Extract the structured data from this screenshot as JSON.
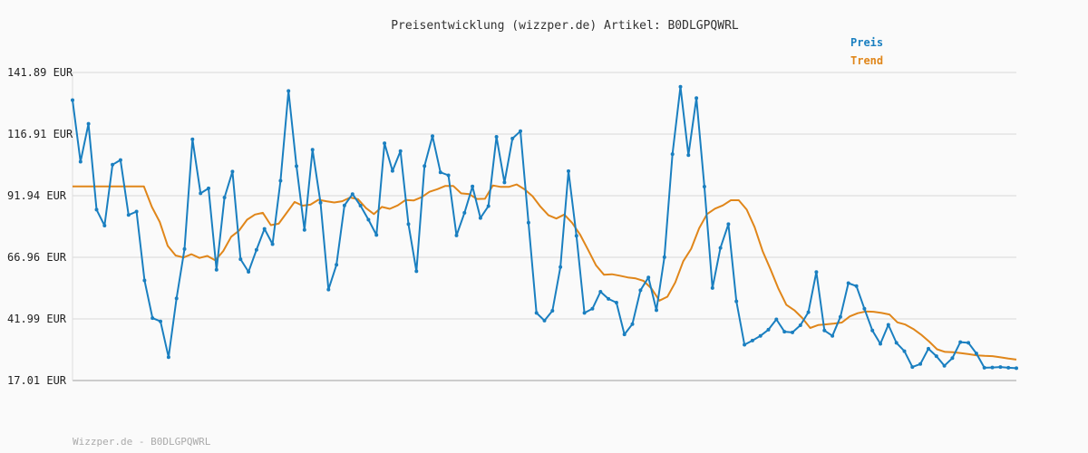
{
  "chart_data": {
    "type": "line",
    "title": "Preisentwicklung (wizzper.de) Artikel: B0DLGPQWRL",
    "xlabel": "",
    "ylabel": "",
    "y_ticks": [
      "141.89 EUR",
      "116.91 EUR",
      "91.94 EUR",
      "66.96 EUR",
      "41.99 EUR",
      "17.01 EUR"
    ],
    "ylim": [
      17.01,
      141.89
    ],
    "grid": "horizontal",
    "legend_position": "top-right",
    "series": [
      {
        "name": "Preis",
        "color": "#1a7fc0",
        "values": [
          130.7,
          105.7,
          121.1,
          86.3,
          79.8,
          104.5,
          106.4,
          84.1,
          85.5,
          57.6,
          42.3,
          41.0,
          26.5,
          50.3,
          70.3,
          114.8,
          92.9,
          94.9,
          61.9,
          91.2,
          101.7,
          66.2,
          61.1,
          70.0,
          78.5,
          72.3,
          98.0,
          134.4,
          103.9,
          78.1,
          110.6,
          89.1,
          53.9,
          63.9,
          88.0,
          92.6,
          87.9,
          82.2,
          76.0,
          113.2,
          102.0,
          110.0,
          80.4,
          61.3,
          104.0,
          116.1,
          101.4,
          100.2,
          75.8,
          85.0,
          95.7,
          82.9,
          87.7,
          115.8,
          97.3,
          115.1,
          118.1,
          81.0,
          44.4,
          41.3,
          45.3,
          63.0,
          101.9,
          75.7,
          44.4,
          46.1,
          53.0,
          50.1,
          48.6,
          35.7,
          39.9,
          53.6,
          58.8,
          45.5,
          67.0,
          108.8,
          136.1,
          108.4,
          131.5,
          95.6,
          54.5,
          70.8,
          80.4,
          49.1,
          31.5,
          33.2,
          35.1,
          37.6,
          41.8,
          36.8,
          36.5,
          39.4,
          44.7,
          61.0,
          37.3,
          35.1,
          42.8,
          56.5,
          55.3,
          46.1,
          37.3,
          31.9,
          39.6,
          32.3,
          28.9,
          22.5,
          23.7,
          29.9,
          26.9,
          23.0,
          26.1,
          32.6,
          32.3,
          28.0,
          22.2,
          22.3,
          22.5,
          22.2,
          22.0
        ]
      },
      {
        "name": "Trend",
        "color": "#e0861a",
        "values": [
          95.7,
          95.7,
          95.7,
          95.7,
          95.7,
          95.7,
          95.7,
          95.7,
          95.7,
          95.7,
          87.4,
          81.3,
          71.6,
          67.7,
          66.9,
          68.2,
          66.7,
          67.5,
          65.7,
          69.5,
          75.3,
          77.8,
          82.2,
          84.3,
          85.0,
          80.0,
          80.6,
          85.0,
          89.4,
          87.9,
          88.3,
          90.3,
          89.7,
          89.2,
          89.7,
          91.2,
          90.5,
          86.9,
          84.5,
          87.4,
          86.6,
          88.0,
          90.2,
          90.0,
          91.3,
          93.5,
          94.6,
          95.9,
          95.9,
          92.9,
          92.6,
          90.6,
          90.7,
          96.1,
          95.5,
          95.5,
          96.5,
          94.5,
          91.7,
          87.5,
          84.0,
          82.7,
          84.3,
          80.9,
          76.1,
          70.0,
          63.7,
          59.9,
          60.1,
          59.5,
          58.8,
          58.4,
          57.4,
          54.3,
          49.4,
          51.0,
          56.8,
          65.4,
          70.4,
          78.7,
          84.5,
          86.7,
          88.0,
          90.1,
          90.1,
          86.3,
          79.2,
          69.5,
          62.1,
          54.2,
          47.7,
          45.5,
          42.4,
          38.3,
          39.5,
          39.8,
          40.1,
          40.5,
          43.0,
          44.3,
          45.0,
          44.9,
          44.4,
          43.8,
          40.6,
          39.7,
          37.9,
          35.6,
          32.8,
          29.7,
          28.6,
          28.5,
          28.1,
          27.7,
          27.2,
          27.0,
          26.9,
          26.4,
          25.9,
          25.5
        ]
      }
    ]
  },
  "legend": {
    "preis": "Preis",
    "trend": "Trend"
  },
  "footer": "Wizzper.de - B0DLGPQWRL"
}
